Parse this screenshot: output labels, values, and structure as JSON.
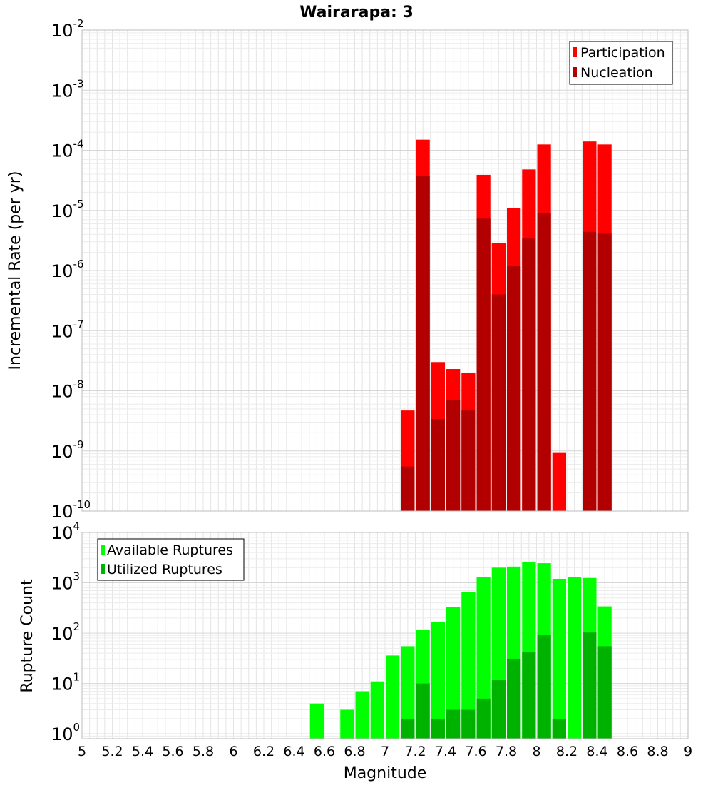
{
  "chart_data": [
    {
      "type": "bar",
      "title": "Wairarapa: 3",
      "xlabel": "",
      "ylabel": "Incremental Rate (per yr)",
      "y_scale": "log",
      "ylim": [
        1e-10,
        0.01
      ],
      "xlim": [
        5,
        9
      ],
      "bar_width": 0.1,
      "grid": true,
      "legend_position": "top-right",
      "y_tick_labels": [
        {
          "base": "10",
          "exp": "-10",
          "value": 1e-10
        },
        {
          "base": "10",
          "exp": "-9",
          "value": 1e-09
        },
        {
          "base": "10",
          "exp": "-8",
          "value": 1e-08
        },
        {
          "base": "10",
          "exp": "-7",
          "value": 1e-07
        },
        {
          "base": "10",
          "exp": "-6",
          "value": 1e-06
        },
        {
          "base": "10",
          "exp": "-5",
          "value": 1e-05
        },
        {
          "base": "10",
          "exp": "-4",
          "value": 0.0001
        },
        {
          "base": "10",
          "exp": "-3",
          "value": 0.001
        },
        {
          "base": "10",
          "exp": "-2",
          "value": 0.01
        }
      ],
      "series": [
        {
          "name": "Participation",
          "color": "#ff0000",
          "points": [
            {
              "x": 7.15,
              "y": 4.7e-09
            },
            {
              "x": 7.25,
              "y": 0.00015
            },
            {
              "x": 7.35,
              "y": 3e-08
            },
            {
              "x": 7.45,
              "y": 2.3e-08
            },
            {
              "x": 7.55,
              "y": 2e-08
            },
            {
              "x": 7.65,
              "y": 3.9e-05
            },
            {
              "x": 7.75,
              "y": 2.9e-06
            },
            {
              "x": 7.85,
              "y": 1.1e-05
            },
            {
              "x": 7.95,
              "y": 4.8e-05
            },
            {
              "x": 8.05,
              "y": 0.000125
            },
            {
              "x": 8.15,
              "y": 9.5e-10
            },
            {
              "x": 8.35,
              "y": 0.00014
            },
            {
              "x": 8.45,
              "y": 0.000125
            }
          ]
        },
        {
          "name": "Nucleation",
          "color": "#b20000",
          "points": [
            {
              "x": 7.15,
              "y": 5.5e-10
            },
            {
              "x": 7.25,
              "y": 3.7e-05
            },
            {
              "x": 7.35,
              "y": 3.4e-09
            },
            {
              "x": 7.45,
              "y": 7e-09
            },
            {
              "x": 7.55,
              "y": 4.7e-09
            },
            {
              "x": 7.65,
              "y": 7.3e-06
            },
            {
              "x": 7.75,
              "y": 4e-07
            },
            {
              "x": 7.85,
              "y": 1.2e-06
            },
            {
              "x": 7.95,
              "y": 3.4e-06
            },
            {
              "x": 8.05,
              "y": 9e-06
            },
            {
              "x": 8.35,
              "y": 4.4e-06
            },
            {
              "x": 8.45,
              "y": 4.1e-06
            }
          ]
        }
      ]
    },
    {
      "type": "bar",
      "title": "",
      "xlabel": "Magnitude",
      "ylabel": "Rupture Count",
      "y_scale": "log",
      "ylim": [
        0.8,
        10000
      ],
      "xlim": [
        5,
        9
      ],
      "bar_width": 0.1,
      "grid": true,
      "legend_position": "top-left",
      "x_ticks": [
        "5",
        "5.2",
        "5.4",
        "5.6",
        "5.8",
        "6",
        "6.2",
        "6.4",
        "6.6",
        "6.8",
        "7",
        "7.2",
        "7.4",
        "7.6",
        "7.8",
        "8",
        "8.2",
        "8.4",
        "8.6",
        "8.8",
        "9"
      ],
      "y_tick_labels": [
        {
          "base": "10",
          "exp": "0",
          "value": 1
        },
        {
          "base": "10",
          "exp": "1",
          "value": 10
        },
        {
          "base": "10",
          "exp": "2",
          "value": 100
        },
        {
          "base": "10",
          "exp": "3",
          "value": 1000
        },
        {
          "base": "10",
          "exp": "4",
          "value": 10000
        }
      ],
      "series": [
        {
          "name": "Available Ruptures",
          "color": "#00ff00",
          "points": [
            {
              "x": 6.55,
              "y": 4
            },
            {
              "x": 6.75,
              "y": 3
            },
            {
              "x": 6.85,
              "y": 7
            },
            {
              "x": 6.95,
              "y": 11
            },
            {
              "x": 7.05,
              "y": 36
            },
            {
              "x": 7.15,
              "y": 55
            },
            {
              "x": 7.25,
              "y": 115
            },
            {
              "x": 7.35,
              "y": 165
            },
            {
              "x": 7.45,
              "y": 330
            },
            {
              "x": 7.55,
              "y": 650
            },
            {
              "x": 7.65,
              "y": 1300
            },
            {
              "x": 7.75,
              "y": 2000
            },
            {
              "x": 7.85,
              "y": 2100
            },
            {
              "x": 7.95,
              "y": 2600
            },
            {
              "x": 8.05,
              "y": 2450
            },
            {
              "x": 8.15,
              "y": 1200
            },
            {
              "x": 8.25,
              "y": 1300
            },
            {
              "x": 8.35,
              "y": 1250
            },
            {
              "x": 8.45,
              "y": 340
            }
          ]
        },
        {
          "name": "Utilized Ruptures",
          "color": "#00b200",
          "points": [
            {
              "x": 7.15,
              "y": 2
            },
            {
              "x": 7.25,
              "y": 10
            },
            {
              "x": 7.35,
              "y": 2
            },
            {
              "x": 7.45,
              "y": 3
            },
            {
              "x": 7.55,
              "y": 3
            },
            {
              "x": 7.65,
              "y": 5
            },
            {
              "x": 7.75,
              "y": 12
            },
            {
              "x": 7.85,
              "y": 31
            },
            {
              "x": 7.95,
              "y": 42
            },
            {
              "x": 8.05,
              "y": 93
            },
            {
              "x": 8.15,
              "y": 2
            },
            {
              "x": 8.35,
              "y": 103
            },
            {
              "x": 8.45,
              "y": 55
            }
          ]
        }
      ]
    }
  ]
}
